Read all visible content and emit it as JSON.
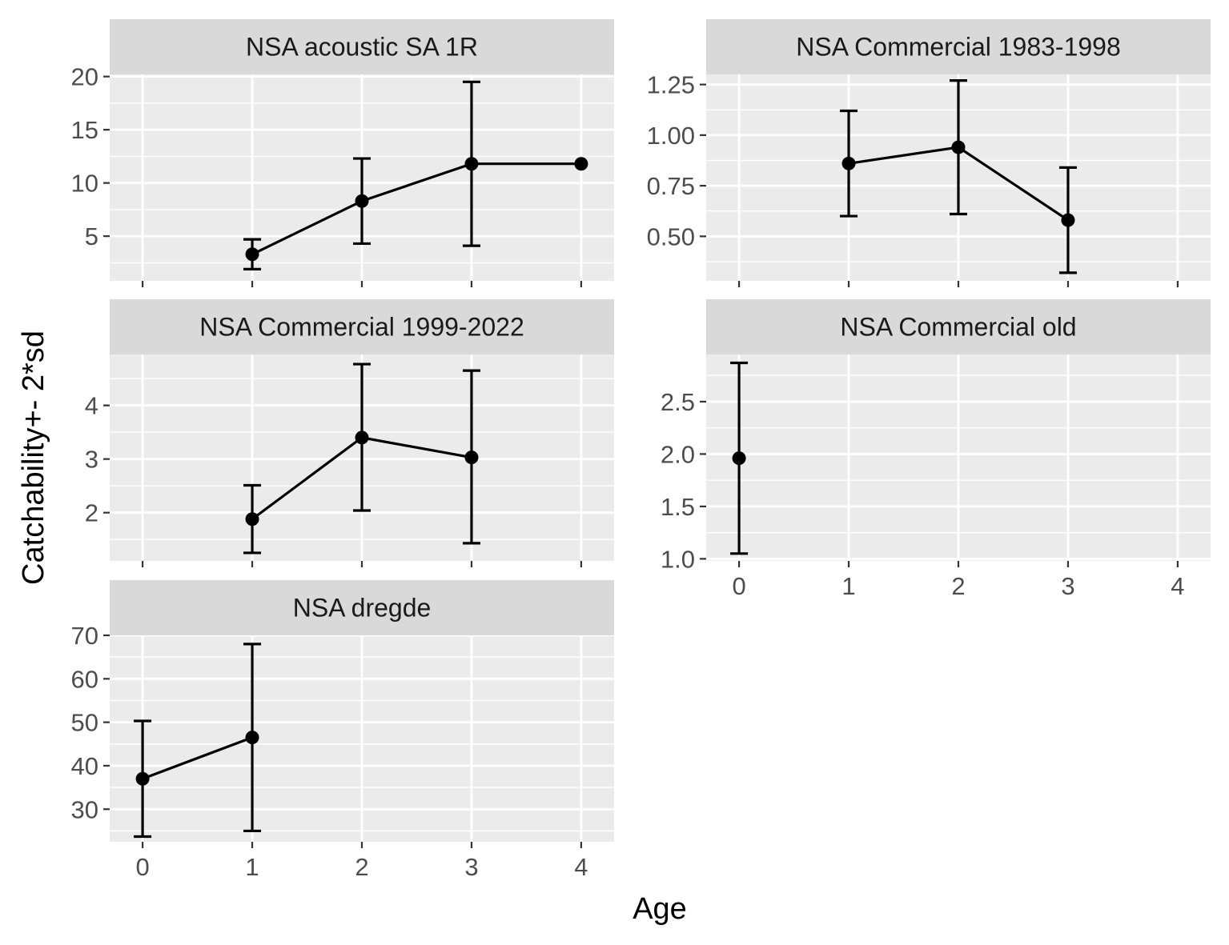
{
  "chart_data": {
    "type": "scatter",
    "facet_layout": "3 rows x 2 columns, free y scales",
    "xlabel": "Age",
    "ylabel": "Catchability+- 2*sd",
    "x_ticks": [
      "0",
      "1",
      "2",
      "3",
      "4"
    ],
    "xlim": [
      -0.3,
      4.3
    ],
    "grid": true,
    "legend": "none",
    "colors": {
      "panel_background": "#ebebeb",
      "strip_background": "#d9d9d9",
      "grid": "#ffffff",
      "series": "#000000"
    },
    "panels": [
      {
        "title": "NSA acoustic SA 1R",
        "ylim": [
          0.8,
          20.2
        ],
        "y_ticks": [
          5,
          10,
          15,
          20
        ],
        "y_tick_labels": [
          "5",
          "10",
          "15",
          "20"
        ],
        "points": [
          {
            "age": 1,
            "value": 3.3,
            "lower": 1.9,
            "upper": 4.7
          },
          {
            "age": 2,
            "value": 8.3,
            "lower": 4.3,
            "upper": 12.3
          },
          {
            "age": 3,
            "value": 11.8,
            "lower": 4.1,
            "upper": 19.5
          },
          {
            "age": 4,
            "value": 11.8
          }
        ]
      },
      {
        "title": "NSA Commercial 1983-1998",
        "ylim": [
          0.28,
          1.3
        ],
        "y_ticks": [
          0.5,
          0.75,
          1.0,
          1.25
        ],
        "y_tick_labels": [
          "0.50",
          "0.75",
          "1.00",
          "1.25"
        ],
        "points": [
          {
            "age": 1,
            "value": 0.86,
            "lower": 0.6,
            "upper": 1.12
          },
          {
            "age": 2,
            "value": 0.94,
            "lower": 0.61,
            "upper": 1.27
          },
          {
            "age": 3,
            "value": 0.58,
            "lower": 0.32,
            "upper": 0.84
          }
        ]
      },
      {
        "title": "NSA Commercial 1999-2022",
        "ylim": [
          1.1,
          4.95
        ],
        "y_ticks": [
          2,
          3,
          4
        ],
        "y_tick_labels": [
          "2",
          "3",
          "4"
        ],
        "points": [
          {
            "age": 1,
            "value": 1.88,
            "lower": 1.25,
            "upper": 2.51
          },
          {
            "age": 2,
            "value": 3.4,
            "lower": 2.04,
            "upper": 4.77
          },
          {
            "age": 3,
            "value": 3.03,
            "lower": 1.43,
            "upper": 4.65
          }
        ]
      },
      {
        "title": "NSA Commercial old",
        "ylim": [
          0.98,
          2.95
        ],
        "y_ticks": [
          1.0,
          1.5,
          2.0,
          2.5
        ],
        "y_tick_labels": [
          "1.0",
          "1.5",
          "2.0",
          "2.5"
        ],
        "points": [
          {
            "age": 0,
            "value": 1.96,
            "lower": 1.05,
            "upper": 2.87
          }
        ]
      },
      {
        "title": "NSA dregde",
        "ylim": [
          22.5,
          70
        ],
        "y_ticks": [
          30,
          40,
          50,
          60,
          70
        ],
        "y_tick_labels": [
          "30",
          "40",
          "50",
          "60",
          "70"
        ],
        "points": [
          {
            "age": 0,
            "value": 37.0,
            "lower": 23.7,
            "upper": 50.3
          },
          {
            "age": 1,
            "value": 46.5,
            "lower": 25.0,
            "upper": 68.0
          }
        ]
      }
    ]
  }
}
